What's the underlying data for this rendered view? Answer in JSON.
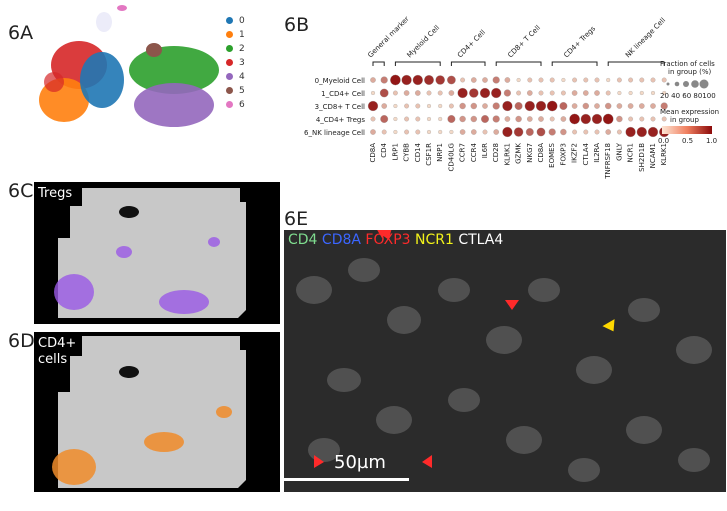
{
  "labels": {
    "a": "6A",
    "b": "6B",
    "c": "6C",
    "d": "6D",
    "e": "6E"
  },
  "umap_legend": [
    {
      "label": "0",
      "color": "#1f77b4"
    },
    {
      "label": "1",
      "color": "#ff7f0e"
    },
    {
      "label": "2",
      "color": "#2ca02c"
    },
    {
      "label": "3",
      "color": "#d62728"
    },
    {
      "label": "4",
      "color": "#9467bd"
    },
    {
      "label": "5",
      "color": "#8c564b"
    },
    {
      "label": "6",
      "color": "#e377c2"
    }
  ],
  "tregs_title": "Tregs",
  "cd4_title_line1": "CD4+",
  "cd4_title_line2": "cells",
  "dotplot": {
    "groups": [
      {
        "name": "General marker",
        "genes": [
          "CD8A",
          "CD4"
        ]
      },
      {
        "name": "Myeloid Cell",
        "genes": [
          "LRP1",
          "CYBB",
          "CD14",
          "CSF1R",
          "NRP1"
        ]
      },
      {
        "name": "CD4+ Cell",
        "genes": [
          "CD40LG",
          "CCR7",
          "CCR4",
          "IL6R"
        ]
      },
      {
        "name": "CD8+ T Cell",
        "genes": [
          "CD28",
          "KLRK1",
          "GZMK",
          "NKG7",
          "CD8A"
        ]
      },
      {
        "name": "CD4+ Tregs",
        "genes": [
          "EOMES",
          "FOXP3",
          "IKZF2",
          "CTLA4",
          "IL2RA"
        ]
      },
      {
        "name": "NK lineage Cell",
        "genes": [
          "TNFRSF18",
          "GNLY",
          "NCR1",
          "SH2D1B",
          "NCAM1",
          "KLRK1"
        ]
      }
    ],
    "rows": [
      "0_Myeloid Cell",
      "1_CD4+ Cell",
      "3_CD8+ T Cell",
      "4_CD4+ Tregs",
      "6_NK lineage Cell"
    ],
    "size_legend_title_1": "Fraction of cells",
    "size_legend_title_2": "in group (%)",
    "size_legend_ticks": "20 40 60 80100",
    "color_legend_title_1": "Mean expression",
    "color_legend_title_2": "in group",
    "color_ticks": [
      "0.0",
      "0.5",
      "1.0"
    ]
  },
  "dot_matrix": [
    [
      0.3,
      0.5,
      0.95,
      0.9,
      0.9,
      0.85,
      0.8,
      0.7,
      0.2,
      0.3,
      0.3,
      0.5,
      0.3,
      0.1,
      0.2,
      0.2,
      0.2,
      0.1,
      0.2,
      0.2,
      0.2,
      0.1,
      0.2,
      0.2,
      0.2,
      0.2,
      0.2
    ],
    [
      0.1,
      0.7,
      0.2,
      0.3,
      0.3,
      0.2,
      0.2,
      0.3,
      0.9,
      0.8,
      0.9,
      0.9,
      0.5,
      0.2,
      0.3,
      0.2,
      0.2,
      0.2,
      0.3,
      0.3,
      0.3,
      0.2,
      0.1,
      0.1,
      0.1,
      0.1,
      0.1
    ],
    [
      0.9,
      0.3,
      0.1,
      0.2,
      0.2,
      0.1,
      0.1,
      0.2,
      0.4,
      0.4,
      0.3,
      0.5,
      0.9,
      0.6,
      0.9,
      0.9,
      0.95,
      0.6,
      0.3,
      0.4,
      0.3,
      0.4,
      0.3,
      0.3,
      0.3,
      0.3,
      0.5
    ],
    [
      0.2,
      0.6,
      0.1,
      0.2,
      0.2,
      0.1,
      0.1,
      0.6,
      0.4,
      0.4,
      0.6,
      0.5,
      0.3,
      0.4,
      0.3,
      0.3,
      0.2,
      0.3,
      0.95,
      0.9,
      0.9,
      0.95,
      0.4,
      0.2,
      0.2,
      0.2,
      0.2
    ],
    [
      0.3,
      0.2,
      0.1,
      0.2,
      0.2,
      0.1,
      0.1,
      0.1,
      0.3,
      0.3,
      0.2,
      0.3,
      0.9,
      0.8,
      0.6,
      0.7,
      0.5,
      0.4,
      0.2,
      0.2,
      0.2,
      0.3,
      0.2,
      0.9,
      0.9,
      0.9,
      0.9
    ]
  ],
  "fluor": {
    "channels": [
      {
        "label": "CD4",
        "color": "#7fdc8f"
      },
      {
        "label": "CD8A",
        "color": "#3b66ff"
      },
      {
        "label": "FOXP3",
        "color": "#ff2a2a"
      },
      {
        "label": "NCR1",
        "color": "#f2f21a"
      },
      {
        "label": "CTLA4",
        "color": "#ffffff"
      }
    ],
    "scalebar": "50µm"
  }
}
